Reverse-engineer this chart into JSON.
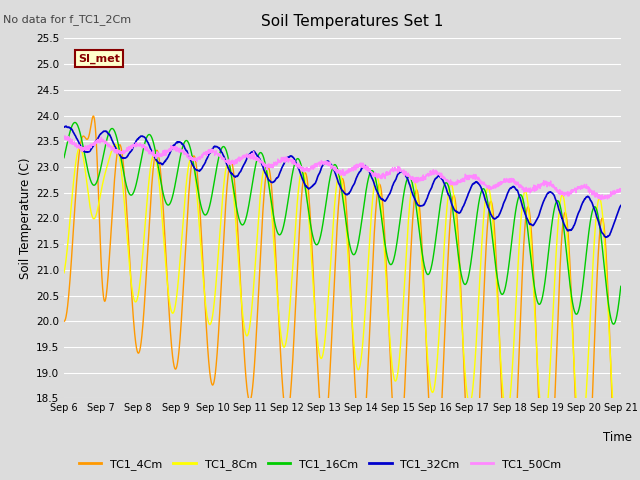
{
  "title": "Soil Temperatures Set 1",
  "subtitle": "No data for f_TC1_2Cm",
  "ylabel": "Soil Temperature (C)",
  "xlabel": "Time",
  "ylim": [
    18.5,
    25.5
  ],
  "x_tick_labels": [
    "Sep 6",
    "Sep 7",
    "Sep 8",
    "Sep 9",
    "Sep 10",
    "Sep 11",
    "Sep 12",
    "Sep 13",
    "Sep 14",
    "Sep 15",
    "Sep 16",
    "Sep 17",
    "Sep 18",
    "Sep 19",
    "Sep 20",
    "Sep 21"
  ],
  "bg_color": "#dcdcdc",
  "plot_bg_color": "#dcdcdc",
  "grid_color": "#ffffff",
  "series": {
    "TC1_4Cm": {
      "color": "#ff9900",
      "lw": 1.0
    },
    "TC1_8Cm": {
      "color": "#ffff00",
      "lw": 1.0
    },
    "TC1_16Cm": {
      "color": "#00cc00",
      "lw": 1.0
    },
    "TC1_32Cm": {
      "color": "#0000cc",
      "lw": 1.2
    },
    "TC1_50Cm": {
      "color": "#ff88ff",
      "lw": 1.0
    }
  },
  "legend_label": "SI_met",
  "legend_bg": "#ffffcc",
  "legend_border": "#880000"
}
